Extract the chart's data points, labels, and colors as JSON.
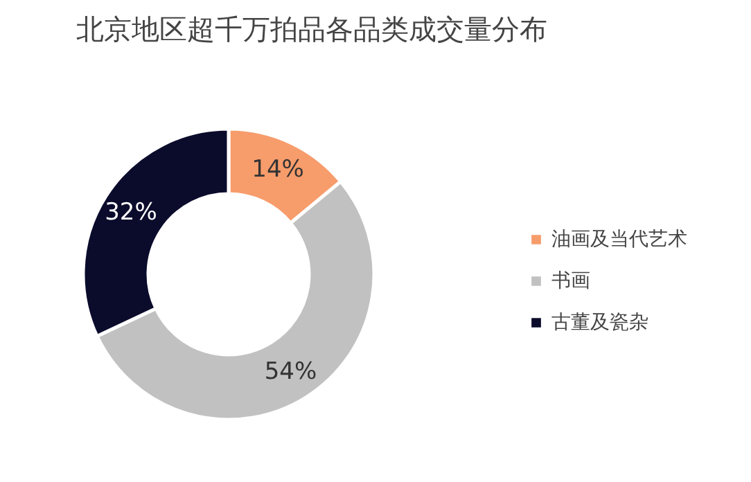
{
  "chart_data": {
    "type": "donut",
    "title": "北京地区超千万拍品各品类成交量分布",
    "categories": [
      "油画及当代艺术",
      "书画",
      "古董及瓷杂"
    ],
    "values": [
      14,
      54,
      32
    ],
    "colors": [
      "#f79c6b",
      "#c2c1c1",
      "#0b0b2c"
    ],
    "value_labels": [
      "14%",
      "54%",
      "32%"
    ],
    "legend": "right"
  }
}
